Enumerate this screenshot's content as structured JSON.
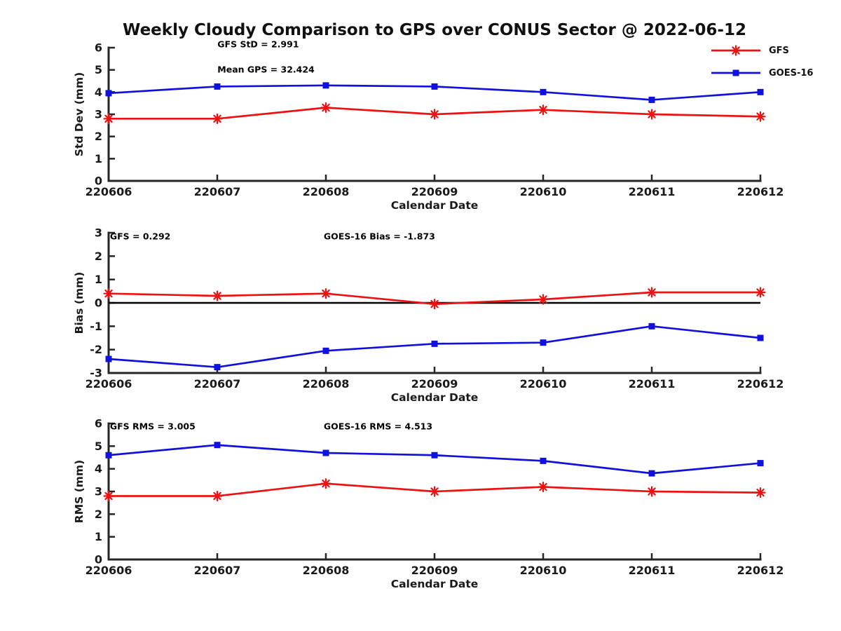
{
  "page": {
    "title": "Weekly Cloudy Comparison to GPS over CONUS Sector @ 2022-06-12"
  },
  "colors": {
    "gfs": "#ee1111",
    "goes16": "#1111dd",
    "axis": "#262626",
    "text": "#1a1a1a",
    "zero_line": "#000000"
  },
  "legend": {
    "position": "top-right",
    "items": [
      {
        "label": "GFS",
        "color": "#ee1111",
        "marker": "asterisk"
      },
      {
        "label": "GOES-16",
        "color": "#1111dd",
        "marker": "square"
      }
    ]
  },
  "chart_data": [
    {
      "type": "line",
      "ylabel": "Std Dev (mm)",
      "xlabel": "Calendar Date",
      "categories": [
        "220606",
        "220607",
        "220608",
        "220609",
        "220610",
        "220611",
        "220612"
      ],
      "ylim": [
        0,
        6
      ],
      "yticks": [
        0,
        1,
        2,
        3,
        4,
        5,
        6
      ],
      "grid": false,
      "zero_line": false,
      "annotations": [
        {
          "text": "GFS StD = 2.991",
          "xf": 0.167,
          "yf": -0.026
        },
        {
          "text": "Mean GPS = 32.424",
          "xf": 0.167,
          "yf": 0.163
        }
      ],
      "series": [
        {
          "name": "GFS",
          "color": "#ee1111",
          "marker": "asterisk",
          "values": [
            2.8,
            2.8,
            3.3,
            3.0,
            3.2,
            3.0,
            2.9
          ]
        },
        {
          "name": "GOES-16",
          "color": "#1111dd",
          "marker": "square",
          "values": [
            3.95,
            4.25,
            4.3,
            4.25,
            4.0,
            3.65,
            4.0
          ]
        }
      ]
    },
    {
      "type": "line",
      "ylabel": "Bias (mm)",
      "xlabel": "Calendar Date",
      "categories": [
        "220606",
        "220607",
        "220608",
        "220609",
        "220610",
        "220611",
        "220612"
      ],
      "ylim": [
        -3,
        3
      ],
      "yticks": [
        -3,
        -2,
        -1,
        0,
        1,
        2,
        3
      ],
      "grid": false,
      "zero_line": true,
      "annotations": [
        {
          "text": "GFS = 0.292",
          "xf": 0.002,
          "yf": 0.025
        },
        {
          "text": "GOES-16 Bias  = -1.873",
          "xf": 0.33,
          "yf": 0.025
        }
      ],
      "series": [
        {
          "name": "GFS",
          "color": "#ee1111",
          "marker": "asterisk",
          "values": [
            0.4,
            0.3,
            0.4,
            -0.05,
            0.15,
            0.45,
            0.45
          ]
        },
        {
          "name": "GOES-16",
          "color": "#1111dd",
          "marker": "square",
          "values": [
            -2.4,
            -2.75,
            -2.05,
            -1.75,
            -1.7,
            -1.0,
            -1.5
          ]
        }
      ]
    },
    {
      "type": "line",
      "ylabel": "RMS (mm)",
      "xlabel": "Calendar Date",
      "categories": [
        "220606",
        "220607",
        "220608",
        "220609",
        "220610",
        "220611",
        "220612"
      ],
      "ylim": [
        0,
        6
      ],
      "yticks": [
        0,
        1,
        2,
        3,
        4,
        5,
        6
      ],
      "grid": false,
      "zero_line": false,
      "annotations": [
        {
          "text": "GFS RMS = 3.005",
          "xf": 0.002,
          "yf": 0.02
        },
        {
          "text": "GOES-16 RMS = 4.513",
          "xf": 0.33,
          "yf": 0.02
        }
      ],
      "series": [
        {
          "name": "GFS",
          "color": "#ee1111",
          "marker": "asterisk",
          "values": [
            2.8,
            2.8,
            3.35,
            3.0,
            3.2,
            3.0,
            2.95
          ]
        },
        {
          "name": "GOES-16",
          "color": "#1111dd",
          "marker": "square",
          "values": [
            4.6,
            5.05,
            4.7,
            4.6,
            4.35,
            3.8,
            4.25
          ]
        }
      ]
    }
  ]
}
